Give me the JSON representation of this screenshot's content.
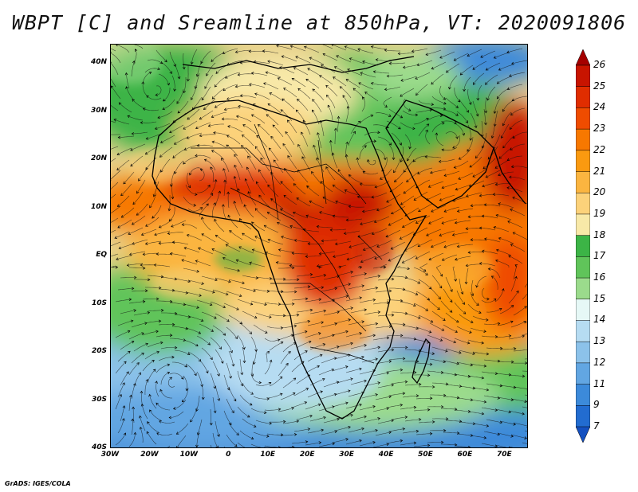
{
  "title": "WBPT [C] and Sreamline at 850hPa, VT: 2020091806",
  "credit": "GrADS: IGES/COLA",
  "map": {
    "lon_range": [
      -30,
      76
    ],
    "lat_range": [
      -40,
      44
    ],
    "lat_ticks": [
      {
        "value": 40,
        "label": "40N"
      },
      {
        "value": 30,
        "label": "30N"
      },
      {
        "value": 20,
        "label": "20N"
      },
      {
        "value": 10,
        "label": "10N"
      },
      {
        "value": 0,
        "label": "EQ"
      },
      {
        "value": -10,
        "label": "10S"
      },
      {
        "value": -20,
        "label": "20S"
      },
      {
        "value": -30,
        "label": "30S"
      },
      {
        "value": -40,
        "label": "40S"
      }
    ],
    "lon_ticks": [
      {
        "value": -30,
        "label": "30W"
      },
      {
        "value": -20,
        "label": "20W"
      },
      {
        "value": -10,
        "label": "10W"
      },
      {
        "value": 0,
        "label": "0"
      },
      {
        "value": 10,
        "label": "10E"
      },
      {
        "value": 20,
        "label": "20E"
      },
      {
        "value": 30,
        "label": "30E"
      },
      {
        "value": 40,
        "label": "40E"
      },
      {
        "value": 50,
        "label": "50E"
      },
      {
        "value": 60,
        "label": "60E"
      },
      {
        "value": 70,
        "label": "70E"
      }
    ]
  },
  "colorbar": {
    "levels": [
      "26",
      "25",
      "24",
      "23",
      "22",
      "21",
      "20",
      "19",
      "18",
      "17",
      "16",
      "15",
      "14",
      "13",
      "12",
      "11",
      "9",
      "7"
    ],
    "colors": [
      "#a50000",
      "#c81400",
      "#e02d00",
      "#ef4c00",
      "#f77800",
      "#fa9a10",
      "#fbb540",
      "#fcd27a",
      "#f8e9a8",
      "#3cb446",
      "#60c45a",
      "#9bdb8c",
      "#e6f8f6",
      "#b6dcf2",
      "#8cc2ea",
      "#62a6e2",
      "#3c8ada",
      "#226cd0",
      "#1450c0"
    ]
  }
}
